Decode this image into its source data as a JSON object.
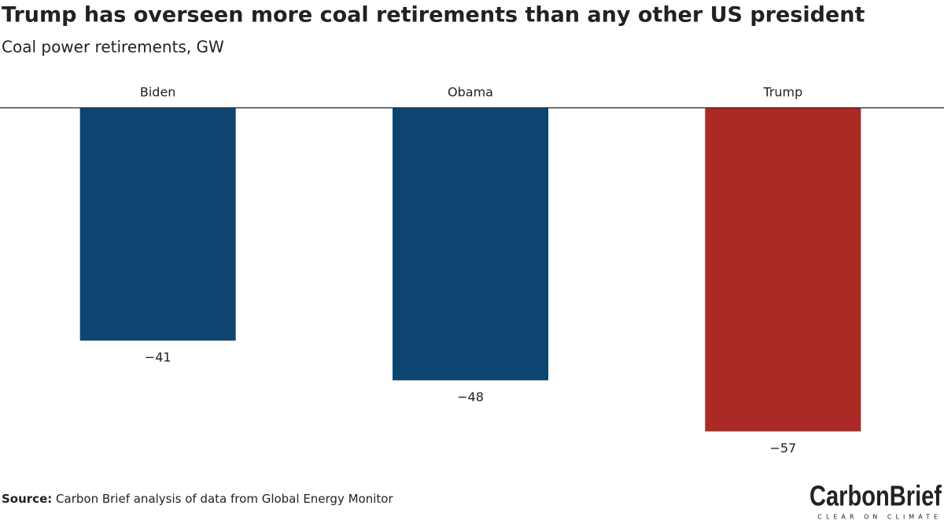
{
  "chart_data": {
    "type": "bar",
    "title": "Trump has overseen more coal retirements than any other US president",
    "subtitle": "Coal power retirements, GW",
    "categories": [
      "Biden",
      "Obama",
      "Trump"
    ],
    "values": [
      -41,
      -48,
      -57
    ],
    "value_labels": [
      "−41",
      "−48",
      "−57"
    ],
    "colors": [
      "#0d4571",
      "#0d4571",
      "#ab2a25"
    ],
    "ylim": [
      -60,
      0
    ],
    "source": {
      "label": "Source:",
      "text": "Carbon Brief analysis of data from Global Energy Monitor"
    },
    "logo": {
      "name": "CarbonBrief",
      "tagline": "CLEAR ON CLIMATE"
    }
  }
}
